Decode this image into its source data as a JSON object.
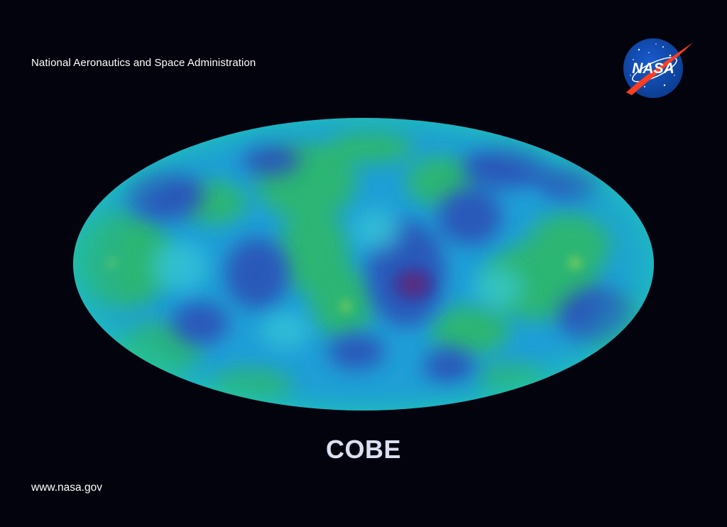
{
  "header": {
    "agency_name": "National Aeronautics and Space Administration",
    "logo_text": "NASA"
  },
  "main": {
    "image": "full-sky microwave anisotropy map (Mollweide ellipse)",
    "title": "COBE"
  },
  "footer": {
    "url": "www.nasa.gov"
  },
  "colors": {
    "background": "#03030d",
    "map_base": "#1f9fd6",
    "map_warm": "#2fb86a",
    "map_cool": "#2a55b8",
    "map_coldest": "#5b2f7f",
    "logo_blue": "#0b3d91",
    "logo_red": "#fc3d21",
    "title_color": "#d9e0f2"
  }
}
